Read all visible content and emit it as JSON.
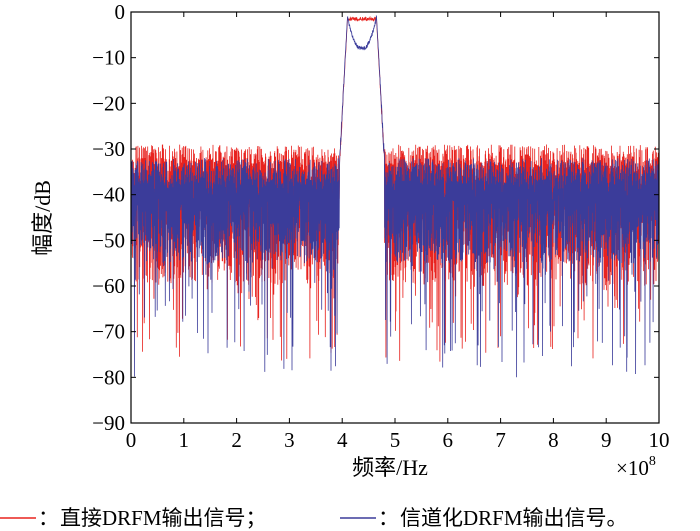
{
  "chart_data": {
    "type": "line",
    "title": "",
    "xlabel": "频率/Hz",
    "ylabel": "幅度/dB",
    "x_multiplier": "×10",
    "x_multiplier_exp": "8",
    "xlim": [
      0,
      10
    ],
    "ylim": [
      -90,
      0
    ],
    "xticks": [
      "0",
      "1",
      "2",
      "3",
      "4",
      "5",
      "6",
      "7",
      "8",
      "9",
      "10"
    ],
    "yticks": [
      "0",
      "−10",
      "−20",
      "−30",
      "−40",
      "−50",
      "−60",
      "−70",
      "−80",
      "−90"
    ],
    "grid": false,
    "legend_position": "bottom",
    "series": [
      {
        "name": "直接DRFM输出信号；",
        "color": "#e8231f",
        "passband": [
          4.1,
          4.65
        ],
        "passband_level_db": -1.5,
        "passband_dip_db": -1.5,
        "noise_peak_db": -29,
        "noise_typical_low_db": -60,
        "noise_min_db": -77
      },
      {
        "name": "信道化DRFM输出信号。",
        "color": "#3b3c9a",
        "passband": [
          4.1,
          4.65
        ],
        "passband_level_db": -1,
        "passband_dip_db": -8,
        "noise_peak_db": -32,
        "noise_typical_low_db": -55,
        "noise_min_db": -80
      }
    ]
  },
  "legend": {
    "sep": "：",
    "items": [
      "直接DRFM输出信号；",
      "信道化DRFM输出信号。"
    ]
  }
}
